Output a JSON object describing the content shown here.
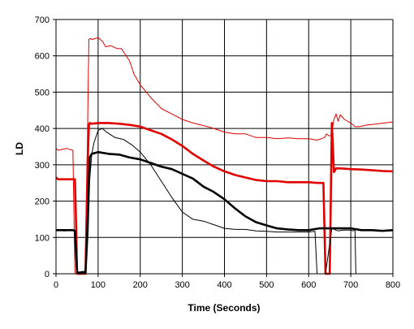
{
  "chart_data": {
    "type": "line",
    "title": "",
    "xlabel": "Time (Seconds)",
    "ylabel": "LD",
    "xlim": [
      0,
      800
    ],
    "ylim": [
      0,
      700
    ],
    "x_ticks": [
      0,
      100,
      200,
      300,
      400,
      500,
      600,
      700,
      800
    ],
    "y_ticks": [
      0,
      100,
      200,
      300,
      400,
      500,
      600,
      700
    ],
    "grid": true,
    "legend": "none",
    "series": [
      {
        "color": "#e00000",
        "stroke": "thin",
        "x": [
          0,
          5,
          25,
          40,
          45,
          50,
          55,
          70,
          75,
          78,
          82,
          85,
          100,
          110,
          118,
          130,
          145,
          155,
          165,
          175,
          185,
          200,
          225,
          250,
          275,
          300,
          325,
          350,
          375,
          400,
          425,
          450,
          475,
          500,
          525,
          550,
          575,
          600,
          620,
          630,
          638,
          642,
          648,
          652,
          656,
          660,
          665,
          670,
          675,
          685,
          700,
          710,
          720,
          740,
          760,
          780,
          800
        ],
        "y": [
          345,
          340,
          345,
          340,
          0,
          0,
          0,
          0,
          400,
          645,
          648,
          645,
          650,
          640,
          625,
          628,
          620,
          620,
          603,
          585,
          550,
          520,
          485,
          455,
          440,
          425,
          415,
          408,
          400,
          390,
          385,
          385,
          375,
          375,
          372,
          374,
          372,
          372,
          368,
          372,
          375,
          385,
          380,
          380,
          395,
          425,
          440,
          420,
          438,
          425,
          415,
          405,
          405,
          410,
          412,
          415,
          418
        ]
      },
      {
        "color": "#e00000",
        "stroke": "thick",
        "x": [
          0,
          5,
          25,
          45,
          48,
          50,
          55,
          70,
          75,
          78,
          80,
          85,
          100,
          125,
          150,
          175,
          200,
          225,
          250,
          275,
          300,
          325,
          350,
          375,
          400,
          425,
          450,
          475,
          500,
          525,
          550,
          575,
          600,
          620,
          635,
          640,
          650,
          655,
          660,
          665,
          675,
          700,
          725,
          750,
          775,
          800
        ],
        "y": [
          265,
          260,
          260,
          260,
          120,
          0,
          0,
          0,
          300,
          410,
          415,
          413,
          415,
          415,
          413,
          410,
          405,
          395,
          385,
          370,
          352,
          330,
          312,
          295,
          282,
          272,
          265,
          258,
          255,
          255,
          252,
          252,
          252,
          250,
          250,
          0,
          0,
          415,
          280,
          290,
          290,
          288,
          287,
          285,
          283,
          282
        ]
      },
      {
        "color": "#000000",
        "stroke": "thin",
        "x": [
          0,
          20,
          40,
          45,
          50,
          55,
          65,
          70,
          75,
          85,
          90,
          100,
          110,
          120,
          140,
          160,
          180,
          200,
          225,
          250,
          275,
          300,
          325,
          350,
          375,
          400,
          425,
          450,
          475,
          500,
          525,
          550,
          575,
          600,
          615,
          620,
          640,
          655,
          665,
          670,
          680,
          700,
          705,
          710,
          712
        ],
        "y": [
          120,
          118,
          120,
          118,
          5,
          3,
          5,
          3,
          190,
          330,
          360,
          395,
          400,
          390,
          375,
          370,
          355,
          335,
          300,
          255,
          210,
          170,
          150,
          145,
          135,
          125,
          122,
          122,
          118,
          117,
          115,
          115,
          115,
          115,
          117,
          0,
          0,
          125,
          120,
          118,
          120,
          120,
          118,
          120,
          0
        ]
      },
      {
        "color": "#000000",
        "stroke": "thick",
        "x": [
          0,
          20,
          40,
          45,
          50,
          55,
          65,
          70,
          75,
          80,
          85,
          100,
          125,
          150,
          175,
          200,
          225,
          250,
          275,
          300,
          325,
          350,
          375,
          400,
          425,
          450,
          475,
          500,
          525,
          550,
          575,
          600,
          625,
          650,
          675,
          700,
          725,
          750,
          775,
          800
        ],
        "y": [
          120,
          120,
          120,
          118,
          5,
          3,
          5,
          3,
          120,
          320,
          330,
          335,
          330,
          328,
          320,
          315,
          305,
          295,
          288,
          275,
          262,
          240,
          225,
          205,
          180,
          158,
          142,
          133,
          125,
          122,
          120,
          120,
          125,
          125,
          125,
          125,
          120,
          120,
          118,
          120
        ]
      }
    ]
  }
}
